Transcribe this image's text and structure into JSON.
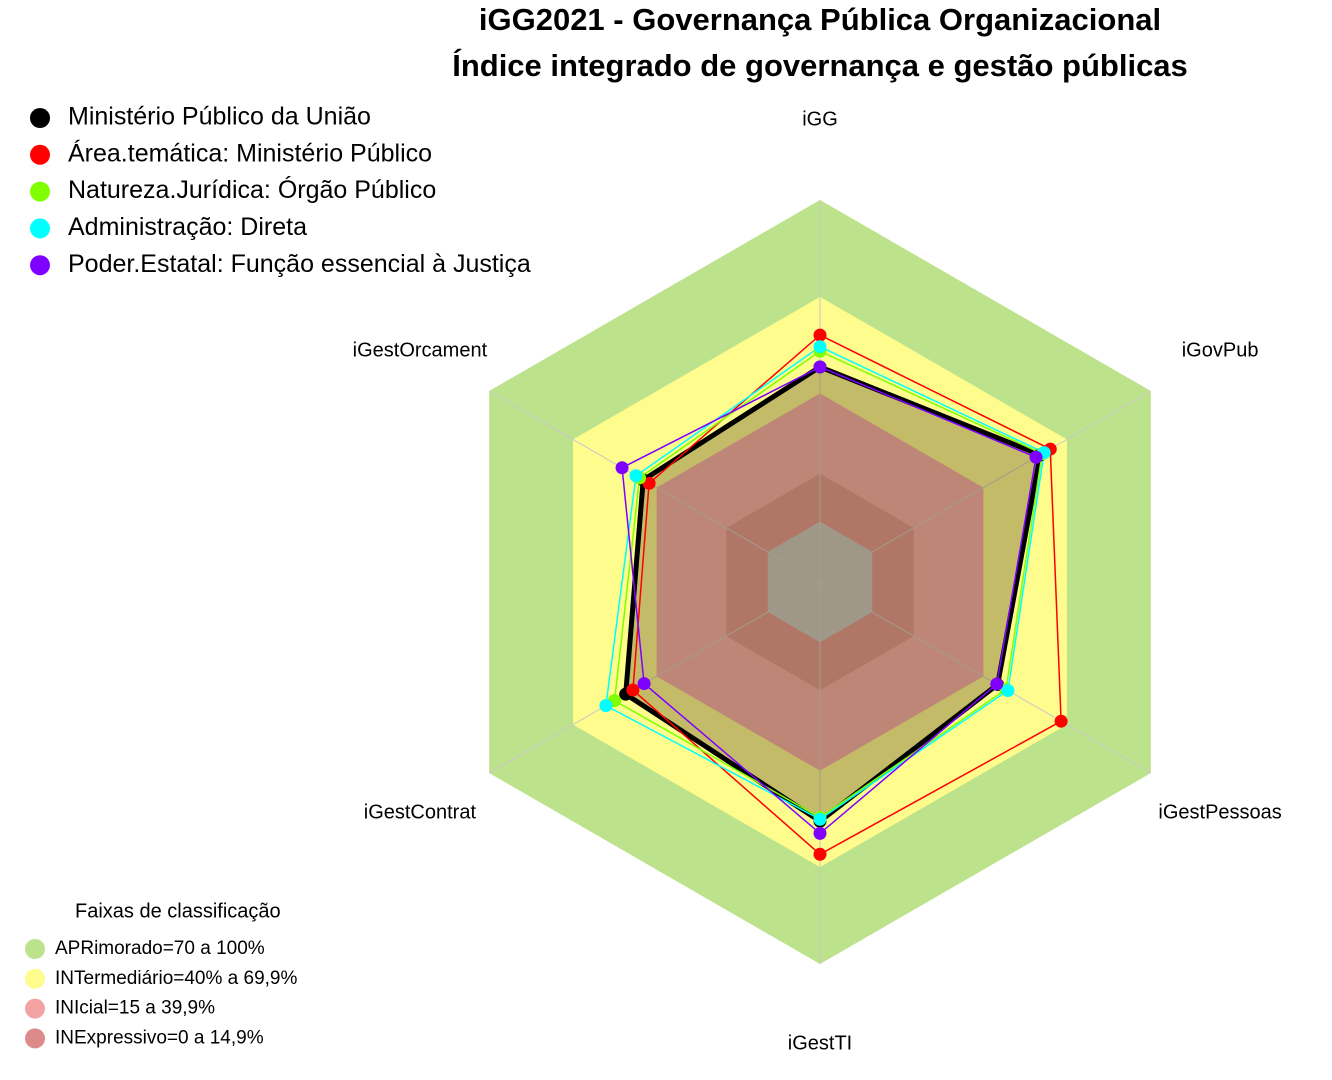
{
  "chart_data": {
    "type": "radar",
    "title": "iGG2021 - Governança Pública Organizacional",
    "subtitle": "Índice integrado de governança e gestão públicas",
    "categories": [
      "iGG",
      "iGovPub",
      "iGestPessoas",
      "iGestTI",
      "iGestContrat",
      "iGestOrcament"
    ],
    "rlim": [
      -18.75,
      100
    ],
    "series": [
      {
        "name": "Ministério Público da União",
        "color": "#000000",
        "values": [
          48.1,
          60.3,
          45,
          55.6,
          51,
          44.7
        ]
      },
      {
        "name": "Área.temática: Ministério Público",
        "color": "#ff0000",
        "values": [
          58,
          63.9,
          67.8,
          65.9,
          48.4,
          42.6
        ]
      },
      {
        "name": "Natureza.Jurídica: Órgão Público",
        "color": "#7fff00",
        "values": [
          53,
          61,
          48,
          54.5,
          55,
          46
        ]
      },
      {
        "name": "Administração: Direta",
        "color": "#00ffff",
        "values": [
          54.4,
          61.7,
          48.7,
          55,
          58.1,
          47.3
        ]
      },
      {
        "name": "Poder.Estatal: Função essencial à Justiça",
        "color": "#8000ff",
        "values": [
          48.1,
          58.8,
          44.7,
          59.4,
          44.4,
          52.3
        ]
      }
    ],
    "bands_title": "Faixas de classificação",
    "bands": [
      {
        "name": "APRimorado=70 a 100%",
        "from": 70,
        "to": 100,
        "color": "#bde28c"
      },
      {
        "name": "INTermediário=40% a 69,9%",
        "from": 40,
        "to": 69.9,
        "color": "#fdfc8c"
      },
      {
        "name": "INIcial=15 a 39,9%",
        "from": 15,
        "to": 39.9,
        "color": "#f4a3a3"
      },
      {
        "name": "INExpressivo=0 a 14,9%",
        "from": 0,
        "to": 14.9,
        "color": "#dc8a8a"
      }
    ]
  }
}
